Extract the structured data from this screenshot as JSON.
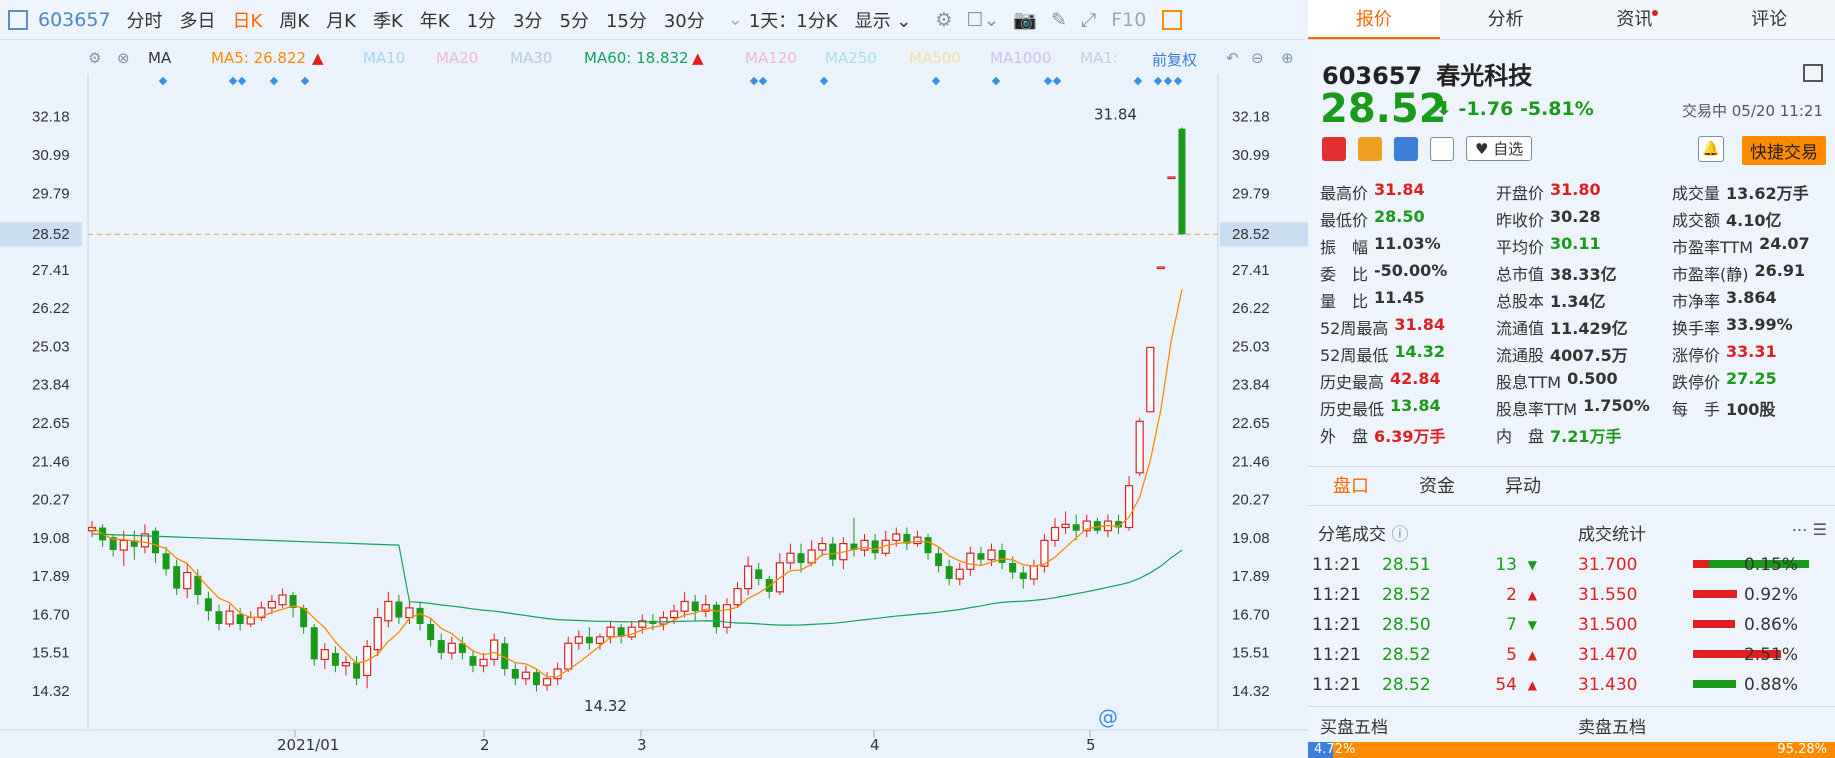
{
  "toolbar": {
    "code": "603657",
    "periods": [
      "分时",
      "多日",
      "日K",
      "周K",
      "月K",
      "季K",
      "年K",
      "1分",
      "3分",
      "5分",
      "15分",
      "30分"
    ],
    "active_period": "日K",
    "multi_day": "1天：1分K",
    "display": "显示",
    "f10": "F10"
  },
  "ma_bar": {
    "type": "MA",
    "items": [
      {
        "label": "MA5: 26.822",
        "color": "#ff8a00"
      },
      {
        "label": "MA10",
        "color": "#a8d4f0"
      },
      {
        "label": "MA20",
        "color": "#f0b8d8"
      },
      {
        "label": "MA30",
        "color": "#b8cce0"
      },
      {
        "label": "MA60: 18.832",
        "color": "#17a25c"
      },
      {
        "label": "MA120",
        "color": "#f0b8c8"
      },
      {
        "label": "MA250",
        "color": "#a8e0f0"
      },
      {
        "label": "MA500",
        "color": "#f0e0a0"
      },
      {
        "label": "MA1000",
        "color": "#d0c0f0"
      },
      {
        "label": "MA1:",
        "color": "#c0d0e0"
      }
    ],
    "adjust": "前复权"
  },
  "chart_data": {
    "type": "candlestick",
    "y_ticks": [
      "32.18",
      "30.99",
      "29.79",
      "28.52",
      "27.41",
      "26.22",
      "25.03",
      "23.84",
      "22.65",
      "21.46",
      "20.27",
      "19.08",
      "17.89",
      "16.70",
      "15.51",
      "14.32"
    ],
    "ylim": [
      13.85,
      32.6
    ],
    "current_price": "28.52",
    "x_labels": [
      "2021/01",
      "2",
      "3",
      "4",
      "5"
    ],
    "annotations": {
      "high": "31.84",
      "low": "14.32"
    },
    "candles": [
      {
        "o": 19.3,
        "c": 19.4,
        "h": 19.6,
        "l": 19.1
      },
      {
        "o": 19.4,
        "c": 19.0,
        "h": 19.5,
        "l": 18.8
      },
      {
        "o": 19.1,
        "c": 18.7,
        "h": 19.2,
        "l": 18.5
      },
      {
        "o": 18.7,
        "c": 19.0,
        "h": 19.3,
        "l": 18.2
      },
      {
        "o": 19.0,
        "c": 18.8,
        "h": 19.3,
        "l": 18.4
      },
      {
        "o": 18.8,
        "c": 19.2,
        "h": 19.5,
        "l": 18.6
      },
      {
        "o": 19.3,
        "c": 18.6,
        "h": 19.4,
        "l": 18.3
      },
      {
        "o": 18.6,
        "c": 18.1,
        "h": 18.8,
        "l": 17.9
      },
      {
        "o": 18.2,
        "c": 17.5,
        "h": 18.4,
        "l": 17.3
      },
      {
        "o": 17.5,
        "c": 18.0,
        "h": 18.3,
        "l": 17.2
      },
      {
        "o": 17.9,
        "c": 17.3,
        "h": 18.1,
        "l": 17.0
      },
      {
        "o": 17.2,
        "c": 16.8,
        "h": 17.4,
        "l": 16.5
      },
      {
        "o": 16.8,
        "c": 16.4,
        "h": 17.0,
        "l": 16.2
      },
      {
        "o": 16.4,
        "c": 16.8,
        "h": 17.0,
        "l": 16.3
      },
      {
        "o": 16.7,
        "c": 16.4,
        "h": 16.9,
        "l": 16.2
      },
      {
        "o": 16.4,
        "c": 16.6,
        "h": 16.8,
        "l": 16.3
      },
      {
        "o": 16.6,
        "c": 16.9,
        "h": 17.1,
        "l": 16.5
      },
      {
        "o": 16.9,
        "c": 17.1,
        "h": 17.3,
        "l": 16.7
      },
      {
        "o": 17.0,
        "c": 17.3,
        "h": 17.5,
        "l": 16.9
      },
      {
        "o": 17.3,
        "c": 16.9,
        "h": 17.4,
        "l": 16.6
      },
      {
        "o": 16.9,
        "c": 16.3,
        "h": 17.0,
        "l": 16.1
      },
      {
        "o": 16.3,
        "c": 15.3,
        "h": 16.4,
        "l": 15.1
      },
      {
        "o": 15.3,
        "c": 15.6,
        "h": 15.8,
        "l": 15.0
      },
      {
        "o": 15.5,
        "c": 15.1,
        "h": 15.7,
        "l": 14.9
      },
      {
        "o": 15.1,
        "c": 15.2,
        "h": 15.4,
        "l": 14.8
      },
      {
        "o": 15.2,
        "c": 14.7,
        "h": 15.4,
        "l": 14.5
      },
      {
        "o": 14.8,
        "c": 15.7,
        "h": 15.9,
        "l": 14.4
      },
      {
        "o": 15.6,
        "c": 16.6,
        "h": 16.9,
        "l": 15.4
      },
      {
        "o": 16.5,
        "c": 17.1,
        "h": 17.4,
        "l": 16.3
      },
      {
        "o": 17.1,
        "c": 16.6,
        "h": 17.3,
        "l": 16.4
      },
      {
        "o": 16.6,
        "c": 16.9,
        "h": 17.1,
        "l": 16.4
      },
      {
        "o": 16.9,
        "c": 16.4,
        "h": 17.1,
        "l": 16.2
      },
      {
        "o": 16.4,
        "c": 15.9,
        "h": 16.6,
        "l": 15.7
      },
      {
        "o": 15.9,
        "c": 15.5,
        "h": 16.1,
        "l": 15.3
      },
      {
        "o": 15.5,
        "c": 15.8,
        "h": 16.0,
        "l": 15.3
      },
      {
        "o": 15.8,
        "c": 15.5,
        "h": 16.0,
        "l": 15.3
      },
      {
        "o": 15.4,
        "c": 15.1,
        "h": 15.6,
        "l": 14.9
      },
      {
        "o": 15.1,
        "c": 15.3,
        "h": 15.5,
        "l": 14.9
      },
      {
        "o": 15.3,
        "c": 15.9,
        "h": 16.1,
        "l": 15.1
      },
      {
        "o": 15.8,
        "c": 15.0,
        "h": 16.0,
        "l": 14.8
      },
      {
        "o": 15.0,
        "c": 14.7,
        "h": 15.2,
        "l": 14.5
      },
      {
        "o": 14.7,
        "c": 14.9,
        "h": 15.1,
        "l": 14.5
      },
      {
        "o": 14.9,
        "c": 14.5,
        "h": 15.0,
        "l": 14.3
      },
      {
        "o": 14.5,
        "c": 14.7,
        "h": 14.9,
        "l": 14.32
      },
      {
        "o": 14.7,
        "c": 15.0,
        "h": 15.2,
        "l": 14.5
      },
      {
        "o": 15.0,
        "c": 15.8,
        "h": 16.0,
        "l": 14.9
      },
      {
        "o": 15.8,
        "c": 16.0,
        "h": 16.2,
        "l": 15.6
      },
      {
        "o": 16.0,
        "c": 15.8,
        "h": 16.3,
        "l": 15.6
      },
      {
        "o": 15.8,
        "c": 16.0,
        "h": 16.1,
        "l": 15.6
      },
      {
        "o": 16.0,
        "c": 16.3,
        "h": 16.5,
        "l": 15.8
      },
      {
        "o": 16.3,
        "c": 16.0,
        "h": 16.4,
        "l": 15.8
      },
      {
        "o": 16.0,
        "c": 16.3,
        "h": 16.5,
        "l": 15.9
      },
      {
        "o": 16.3,
        "c": 16.5,
        "h": 16.7,
        "l": 16.1
      },
      {
        "o": 16.5,
        "c": 16.4,
        "h": 16.7,
        "l": 16.2
      },
      {
        "o": 16.4,
        "c": 16.6,
        "h": 16.8,
        "l": 16.2
      },
      {
        "o": 16.6,
        "c": 16.8,
        "h": 17.0,
        "l": 16.4
      },
      {
        "o": 16.8,
        "c": 17.1,
        "h": 17.4,
        "l": 16.6
      },
      {
        "o": 17.1,
        "c": 16.8,
        "h": 17.3,
        "l": 16.5
      },
      {
        "o": 16.8,
        "c": 17.0,
        "h": 17.3,
        "l": 16.6
      },
      {
        "o": 17.0,
        "c": 16.3,
        "h": 17.1,
        "l": 16.1
      },
      {
        "o": 16.3,
        "c": 17.0,
        "h": 17.2,
        "l": 16.1
      },
      {
        "o": 17.0,
        "c": 17.5,
        "h": 17.7,
        "l": 16.9
      },
      {
        "o": 17.5,
        "c": 18.2,
        "h": 18.5,
        "l": 17.3
      },
      {
        "o": 18.1,
        "c": 17.8,
        "h": 18.3,
        "l": 17.6
      },
      {
        "o": 17.8,
        "c": 17.4,
        "h": 17.9,
        "l": 17.2
      },
      {
        "o": 17.4,
        "c": 18.3,
        "h": 18.6,
        "l": 17.3
      },
      {
        "o": 18.3,
        "c": 18.6,
        "h": 18.9,
        "l": 18.1
      },
      {
        "o": 18.6,
        "c": 18.3,
        "h": 18.9,
        "l": 18.0
      },
      {
        "o": 18.3,
        "c": 18.7,
        "h": 19.0,
        "l": 18.2
      },
      {
        "o": 18.7,
        "c": 18.9,
        "h": 19.1,
        "l": 18.5
      },
      {
        "o": 18.9,
        "c": 18.4,
        "h": 19.1,
        "l": 18.2
      },
      {
        "o": 18.4,
        "c": 18.9,
        "h": 19.1,
        "l": 18.1
      },
      {
        "o": 18.9,
        "c": 18.7,
        "h": 19.7,
        "l": 18.5
      },
      {
        "o": 18.7,
        "c": 19.0,
        "h": 19.2,
        "l": 18.5
      },
      {
        "o": 19.0,
        "c": 18.6,
        "h": 19.2,
        "l": 18.4
      },
      {
        "o": 18.6,
        "c": 19.0,
        "h": 19.3,
        "l": 18.5
      },
      {
        "o": 19.0,
        "c": 19.2,
        "h": 19.4,
        "l": 18.8
      },
      {
        "o": 19.2,
        "c": 18.9,
        "h": 19.4,
        "l": 18.7
      },
      {
        "o": 18.9,
        "c": 19.1,
        "h": 19.3,
        "l": 18.8
      },
      {
        "o": 19.1,
        "c": 18.6,
        "h": 19.2,
        "l": 18.4
      },
      {
        "o": 18.6,
        "c": 18.2,
        "h": 18.8,
        "l": 18.0
      },
      {
        "o": 18.2,
        "c": 17.8,
        "h": 18.4,
        "l": 17.6
      },
      {
        "o": 17.8,
        "c": 18.1,
        "h": 18.3,
        "l": 17.6
      },
      {
        "o": 18.1,
        "c": 18.6,
        "h": 18.8,
        "l": 17.9
      },
      {
        "o": 18.6,
        "c": 18.4,
        "h": 18.8,
        "l": 18.2
      },
      {
        "o": 18.4,
        "c": 18.7,
        "h": 18.9,
        "l": 18.2
      },
      {
        "o": 18.7,
        "c": 18.3,
        "h": 18.9,
        "l": 18.1
      },
      {
        "o": 18.3,
        "c": 18.0,
        "h": 18.5,
        "l": 17.8
      },
      {
        "o": 18.0,
        "c": 17.8,
        "h": 18.2,
        "l": 17.5
      },
      {
        "o": 17.8,
        "c": 18.2,
        "h": 18.4,
        "l": 17.6
      },
      {
        "o": 18.2,
        "c": 19.0,
        "h": 19.2,
        "l": 18.0
      },
      {
        "o": 19.0,
        "c": 19.4,
        "h": 19.7,
        "l": 18.8
      },
      {
        "o": 19.4,
        "c": 19.5,
        "h": 19.9,
        "l": 19.2
      },
      {
        "o": 19.5,
        "c": 19.3,
        "h": 19.8,
        "l": 19.0
      },
      {
        "o": 19.3,
        "c": 19.6,
        "h": 19.8,
        "l": 19.1
      },
      {
        "o": 19.6,
        "c": 19.3,
        "h": 19.7,
        "l": 19.2
      },
      {
        "o": 19.3,
        "c": 19.6,
        "h": 19.8,
        "l": 19.1
      },
      {
        "o": 19.6,
        "c": 19.4,
        "h": 19.8,
        "l": 19.2
      },
      {
        "o": 19.4,
        "c": 20.7,
        "h": 21.0,
        "l": 19.3
      },
      {
        "o": 21.1,
        "c": 22.7,
        "h": 22.8,
        "l": 21.0
      },
      {
        "o": 23.0,
        "c": 25.0,
        "h": 25.0,
        "l": 23.0
      },
      {
        "o": 27.5,
        "c": 27.5,
        "h": 27.5,
        "l": 27.5
      },
      {
        "o": 30.3,
        "c": 30.3,
        "h": 30.3,
        "l": 30.3
      },
      {
        "o": 31.8,
        "c": 28.52,
        "h": 31.84,
        "l": 28.5
      }
    ]
  },
  "stock": {
    "code": "603657",
    "name": "春光科技",
    "price": "28.52",
    "arrow": "⬇",
    "change": "-1.76",
    "change_pct": "-5.81%",
    "status": "交易中 05/20 11:21",
    "watch": "自选",
    "quick_trade": "快捷交易"
  },
  "right_tabs": [
    {
      "label": "报价",
      "active": true
    },
    {
      "label": "分析",
      "active": false
    },
    {
      "label": "资讯",
      "active": false,
      "dot": true
    },
    {
      "label": "评论",
      "active": false
    }
  ],
  "quotes": [
    [
      {
        "l": "最高价",
        "v": "31.84",
        "c": "red"
      },
      {
        "l": "开盘价",
        "v": "31.80",
        "c": "red"
      },
      {
        "l": "成交量",
        "v": "13.62万手",
        "c": "dark"
      }
    ],
    [
      {
        "l": "最低价",
        "v": "28.50",
        "c": "green"
      },
      {
        "l": "昨收价",
        "v": "30.28",
        "c": "dark"
      },
      {
        "l": "成交额",
        "v": "4.10亿",
        "c": "dark"
      }
    ],
    [
      {
        "l": "振　幅",
        "v": "11.03%",
        "c": "dark"
      },
      {
        "l": "平均价",
        "v": "30.11",
        "c": "green"
      },
      {
        "l": "市盈率TTM",
        "v": "24.07",
        "c": "dark"
      }
    ],
    [
      {
        "l": "委　比",
        "v": "-50.00%",
        "c": "dark"
      },
      {
        "l": "总市值",
        "v": "38.33亿",
        "c": "dark"
      },
      {
        "l": "市盈率(静)",
        "v": "26.91",
        "c": "dark"
      }
    ],
    [
      {
        "l": "量　比",
        "v": "11.45",
        "c": "dark"
      },
      {
        "l": "总股本",
        "v": "1.34亿",
        "c": "dark"
      },
      {
        "l": "市净率",
        "v": "3.864",
        "c": "dark"
      }
    ],
    [
      {
        "l": "52周最高",
        "v": "31.84",
        "c": "red"
      },
      {
        "l": "流通值",
        "v": "11.429亿",
        "c": "dark"
      },
      {
        "l": "换手率",
        "v": "33.99%",
        "c": "dark"
      }
    ],
    [
      {
        "l": "52周最低",
        "v": "14.32",
        "c": "green"
      },
      {
        "l": "流通股",
        "v": "4007.5万",
        "c": "dark"
      },
      {
        "l": "涨停价",
        "v": "33.31",
        "c": "red"
      }
    ],
    [
      {
        "l": "历史最高",
        "v": "42.84",
        "c": "red"
      },
      {
        "l": "股息TTM",
        "v": "0.500",
        "c": "dark"
      },
      {
        "l": "跌停价",
        "v": "27.25",
        "c": "green"
      }
    ],
    [
      {
        "l": "历史最低",
        "v": "13.84",
        "c": "green"
      },
      {
        "l": "股息率TTM",
        "v": "1.750%",
        "c": "dark"
      },
      {
        "l": "每　手",
        "v": "100股",
        "c": "dark"
      }
    ],
    [
      {
        "l": "外　盘",
        "v": "6.39万手",
        "c": "red"
      },
      {
        "l": "内　盘",
        "v": "7.21万手",
        "c": "green"
      },
      {
        "l": "",
        "v": "",
        "c": "dark"
      }
    ]
  ],
  "sub_tabs": [
    "盘口",
    "资金",
    "异动"
  ],
  "trades_title": "分笔成交",
  "stats_title": "成交统计",
  "trades": [
    {
      "t": "11:21",
      "p": "28.51",
      "v": "13",
      "dir": "down"
    },
    {
      "t": "11:21",
      "p": "28.52",
      "v": "2",
      "dir": "up"
    },
    {
      "t": "11:21",
      "p": "28.50",
      "v": "7",
      "dir": "down"
    },
    {
      "t": "11:21",
      "p": "28.52",
      "v": "5",
      "dir": "up"
    },
    {
      "t": "11:21",
      "p": "28.52",
      "v": "54",
      "dir": "up"
    }
  ],
  "stats": [
    {
      "p": "31.700",
      "pct": "0.15%",
      "bar": "mixed"
    },
    {
      "p": "31.550",
      "pct": "0.92%",
      "bar": "red"
    },
    {
      "p": "31.500",
      "pct": "0.86%",
      "bar": "red"
    },
    {
      "p": "31.470",
      "pct": "2.51%",
      "bar": "red"
    },
    {
      "p": "31.430",
      "pct": "0.88%",
      "bar": "green"
    }
  ],
  "book": {
    "buy_title": "买盘五档",
    "sell_title": "卖盘五档",
    "buy_pct": "4.72%",
    "sell_pct": "95.28%"
  },
  "colors": {
    "up": "#e02020",
    "down": "#1a9a1a",
    "accent": "#ff6600",
    "ma5": "#ff8a00",
    "ma60": "#17a25c"
  }
}
